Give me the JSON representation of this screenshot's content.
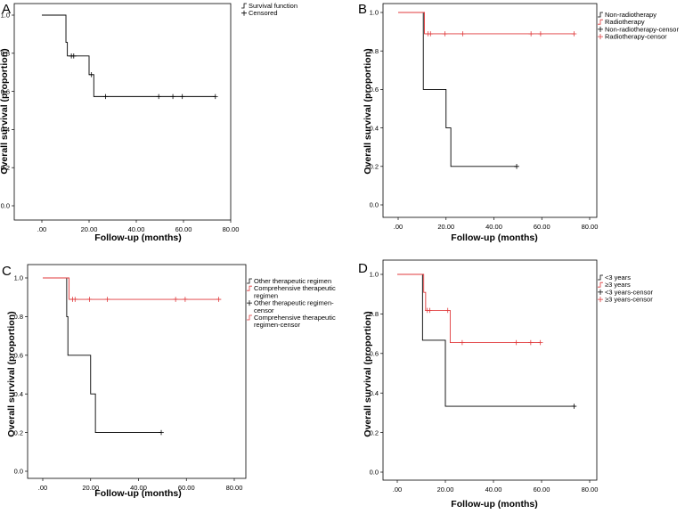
{
  "figure": {
    "panels": [
      {
        "type": "line",
        "subtype": "kaplan-meier",
        "letter": "A",
        "xlabel": "Follow-up (months)",
        "ylabel": "Overall survival (proportion)",
        "xlim": [
          0,
          80
        ],
        "ylim": [
          0,
          1
        ],
        "xticks": [
          0,
          20,
          40,
          60,
          80
        ],
        "xtick_labels": [
          ".00",
          "20.00",
          "40.00",
          "60.00",
          "80.00"
        ],
        "yticks": [
          0,
          0.2,
          0.4,
          0.6,
          0.8,
          1.0
        ],
        "ytick_labels": [
          "0.0",
          "0.2",
          "0.4",
          "0.6",
          "0.8",
          "1.0"
        ],
        "legend": [
          "Survival function",
          "Censored"
        ],
        "legend_colors": [
          "#000000",
          "#000000"
        ],
        "series": [
          {
            "name": "Survival function",
            "color": "#000000",
            "steps": [
              [
                0,
                1.0
              ],
              [
                10.2,
                0.857
              ],
              [
                10.8,
                0.786
              ],
              [
                20.0,
                0.688
              ],
              [
                22.0,
                0.573
              ],
              [
                73.5,
                0.573
              ]
            ],
            "censored": [
              [
                12.5,
                0.786
              ],
              [
                13.5,
                0.786
              ],
              [
                21.0,
                0.688
              ],
              [
                27.0,
                0.573
              ],
              [
                49.5,
                0.573
              ],
              [
                55.5,
                0.573
              ],
              [
                59.5,
                0.573
              ],
              [
                73.5,
                0.573
              ]
            ]
          }
        ]
      },
      {
        "type": "line",
        "subtype": "kaplan-meier",
        "letter": "B",
        "xlabel": "Follow-up (months)",
        "ylabel": "Overall survival (proportion)",
        "xlim": [
          0,
          80
        ],
        "ylim": [
          0,
          1
        ],
        "xticks": [
          0,
          20,
          40,
          60,
          80
        ],
        "xtick_labels": [
          ".00",
          "20.00",
          "40.00",
          "60.00",
          "80.00"
        ],
        "yticks": [
          0,
          0.2,
          0.4,
          0.6,
          0.8,
          1.0
        ],
        "ytick_labels": [
          "0.0",
          "0.2",
          "0.4",
          "0.6",
          "0.8",
          "1.0"
        ],
        "legend": [
          "Non-radiotherapy",
          "Radiotherapy",
          "Non-radiotherapy-censor",
          "Radiotherapy-censor"
        ],
        "legend_colors": [
          "#000000",
          "#e0393b",
          "#000000",
          "#e0393b"
        ],
        "series": [
          {
            "name": "Non-radiotherapy",
            "color": "#000000",
            "steps": [
              [
                0,
                1.0
              ],
              [
                10.5,
                0.6
              ],
              [
                20.0,
                0.4
              ],
              [
                22.0,
                0.2
              ],
              [
                49.5,
                0.2
              ]
            ],
            "censored": [
              [
                49.5,
                0.2
              ]
            ]
          },
          {
            "name": "Radiotherapy",
            "color": "#e0393b",
            "steps": [
              [
                0,
                1.0
              ],
              [
                11.0,
                0.889
              ],
              [
                73.5,
                0.889
              ]
            ],
            "censored": [
              [
                12.5,
                0.889
              ],
              [
                13.5,
                0.889
              ],
              [
                19.5,
                0.889
              ],
              [
                27.0,
                0.889
              ],
              [
                55.5,
                0.889
              ],
              [
                59.5,
                0.889
              ],
              [
                73.5,
                0.889
              ]
            ]
          }
        ]
      },
      {
        "type": "line",
        "subtype": "kaplan-meier",
        "letter": "C",
        "xlabel": "Follow-up (months)",
        "ylabel": "Overall survival (proportion)",
        "xlim": [
          0,
          80
        ],
        "ylim": [
          0,
          1
        ],
        "xticks": [
          0,
          20,
          40,
          60,
          80
        ],
        "xtick_labels": [
          ".00",
          "20.00",
          "40.00",
          "60.00",
          "80.00"
        ],
        "yticks": [
          0,
          0.2,
          0.4,
          0.6,
          0.8,
          1.0
        ],
        "ytick_labels": [
          "0.0",
          "0.2",
          "0.4",
          "0.6",
          "0.8",
          "1.0"
        ],
        "legend": [
          "Other therapeutic regimen",
          "Comprehensive therapeutic",
          "regimen",
          "Other therapeutic regimen-",
          "censor",
          "Comprehensive therapeutic",
          "regimen-censor"
        ],
        "legend_colors": [
          "#000000",
          "#e0393b",
          "#e0393b",
          "#000000",
          "#000000",
          "#e0393b",
          "#e0393b"
        ],
        "series": [
          {
            "name": "Other therapeutic regimen",
            "color": "#000000",
            "steps": [
              [
                0,
                1.0
              ],
              [
                10.0,
                0.8
              ],
              [
                10.5,
                0.6
              ],
              [
                20.0,
                0.4
              ],
              [
                22.0,
                0.2
              ],
              [
                49.5,
                0.2
              ]
            ],
            "censored": [
              [
                49.5,
                0.2
              ]
            ]
          },
          {
            "name": "Comprehensive therapeutic regimen",
            "color": "#e0393b",
            "steps": [
              [
                0,
                1.0
              ],
              [
                11.0,
                0.889
              ],
              [
                73.5,
                0.889
              ]
            ],
            "censored": [
              [
                12.5,
                0.889
              ],
              [
                13.5,
                0.889
              ],
              [
                19.5,
                0.889
              ],
              [
                27.0,
                0.889
              ],
              [
                55.5,
                0.889
              ],
              [
                59.5,
                0.889
              ],
              [
                73.5,
                0.889
              ]
            ]
          }
        ]
      },
      {
        "type": "line",
        "subtype": "kaplan-meier",
        "letter": "D",
        "xlabel": "Follow-up (months)",
        "ylabel": "Overall survival (proportion)",
        "xlim": [
          0,
          80
        ],
        "ylim": [
          0,
          1
        ],
        "xticks": [
          0,
          20,
          40,
          60,
          80
        ],
        "xtick_labels": [
          ".00",
          "20.00",
          "40.00",
          "60.00",
          "80.00"
        ],
        "yticks": [
          0,
          0.2,
          0.4,
          0.6,
          0.8,
          1.0
        ],
        "ytick_labels": [
          "0.0",
          "0.2",
          "0.4",
          "0.6",
          "0.8",
          "1.0"
        ],
        "legend": [
          "<3 years",
          "≥3 years",
          "<3 years-censor",
          "≥3 years-censor"
        ],
        "legend_colors": [
          "#000000",
          "#e0393b",
          "#000000",
          "#e0393b"
        ],
        "series": [
          {
            "name": "<3 years",
            "color": "#000000",
            "steps": [
              [
                0,
                1.0
              ],
              [
                10.5,
                0.667
              ],
              [
                20.0,
                0.333
              ],
              [
                73.5,
                0.333
              ]
            ],
            "censored": [
              [
                73.5,
                0.333
              ]
            ]
          },
          {
            "name": "≥3 years",
            "color": "#e0393b",
            "steps": [
              [
                0,
                1.0
              ],
              [
                11.0,
                0.909
              ],
              [
                11.8,
                0.818
              ],
              [
                22.0,
                0.655
              ],
              [
                59.5,
                0.655
              ]
            ],
            "censored": [
              [
                12.5,
                0.818
              ],
              [
                13.5,
                0.818
              ],
              [
                21.0,
                0.818
              ],
              [
                27.0,
                0.655
              ],
              [
                49.5,
                0.655
              ],
              [
                55.5,
                0.655
              ],
              [
                59.5,
                0.655
              ]
            ]
          }
        ]
      }
    ]
  }
}
